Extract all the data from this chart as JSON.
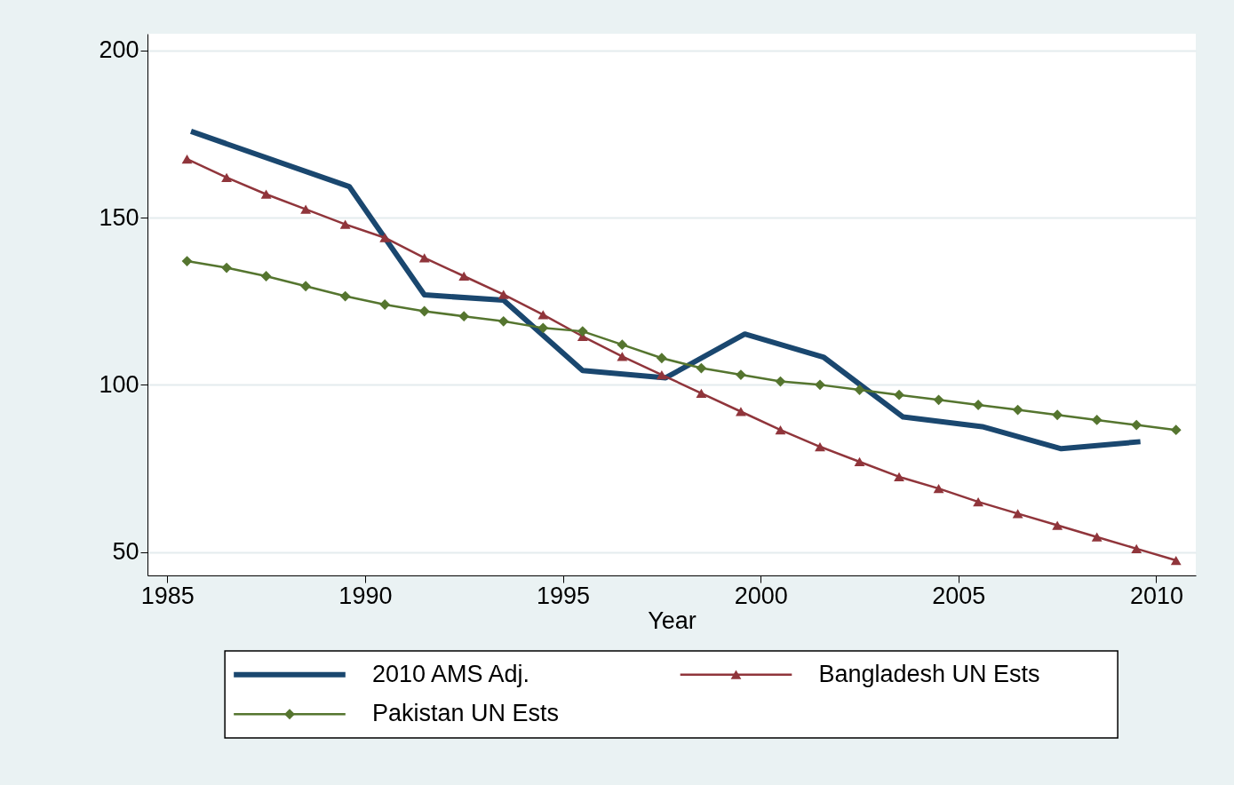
{
  "chart_data": {
    "type": "line",
    "xlabel": "Year",
    "xlim": [
      1984.5,
      2011
    ],
    "xticks": [
      1985,
      1990,
      1995,
      2000,
      2005,
      2010
    ],
    "ylim": [
      43,
      205
    ],
    "yticks": [
      50,
      100,
      150,
      200
    ],
    "grid": "y",
    "legend": "bottom",
    "x": [
      1985.5,
      1986.5,
      1987.5,
      1988.5,
      1989.5,
      1990.5,
      1991.5,
      1992.5,
      1993.5,
      1994.5,
      1995.5,
      1996.5,
      1997.5,
      1998.5,
      1999.5,
      2000.5,
      2001.5,
      2002.5,
      2003.5,
      2004.5,
      2005.5,
      2006.5,
      2007.5,
      2008.5,
      2009.5,
      2010.5
    ],
    "series": [
      {
        "name": "2010 AMS Adj.",
        "color": "#1a476f",
        "marker": "none",
        "x": [
          1985.6,
          1989.6,
          1991.5,
          1993.5,
          1995.5,
          1997.6,
          1999.6,
          2001.6,
          2003.6,
          2005.6,
          2007.6,
          2009.6
        ],
        "values": [
          175.8,
          159.3,
          126.9,
          125.3,
          104.3,
          102.1,
          115.2,
          108.2,
          90.4,
          87.5,
          80.9,
          83.0
        ]
      },
      {
        "name": "Bangladesh UN Ests",
        "color": "#90353b",
        "marker": "triangle",
        "values": [
          167.5,
          162,
          157,
          152.5,
          148,
          144,
          138,
          132.5,
          127,
          121,
          114.5,
          108.5,
          103,
          97.5,
          92,
          86.5,
          81.5,
          77,
          72.5,
          69,
          65,
          61.5,
          58,
          54.5,
          51,
          47.5
        ]
      },
      {
        "name": "Pakistan UN Ests",
        "color": "#55752f",
        "marker": "diamond",
        "values": [
          137,
          135,
          132.5,
          129.5,
          126.5,
          124,
          122,
          120.5,
          119,
          117,
          116,
          112,
          108,
          105,
          103,
          101,
          100,
          98.5,
          97,
          95.5,
          94,
          92.5,
          91,
          89.5,
          88,
          86.5
        ]
      }
    ]
  }
}
